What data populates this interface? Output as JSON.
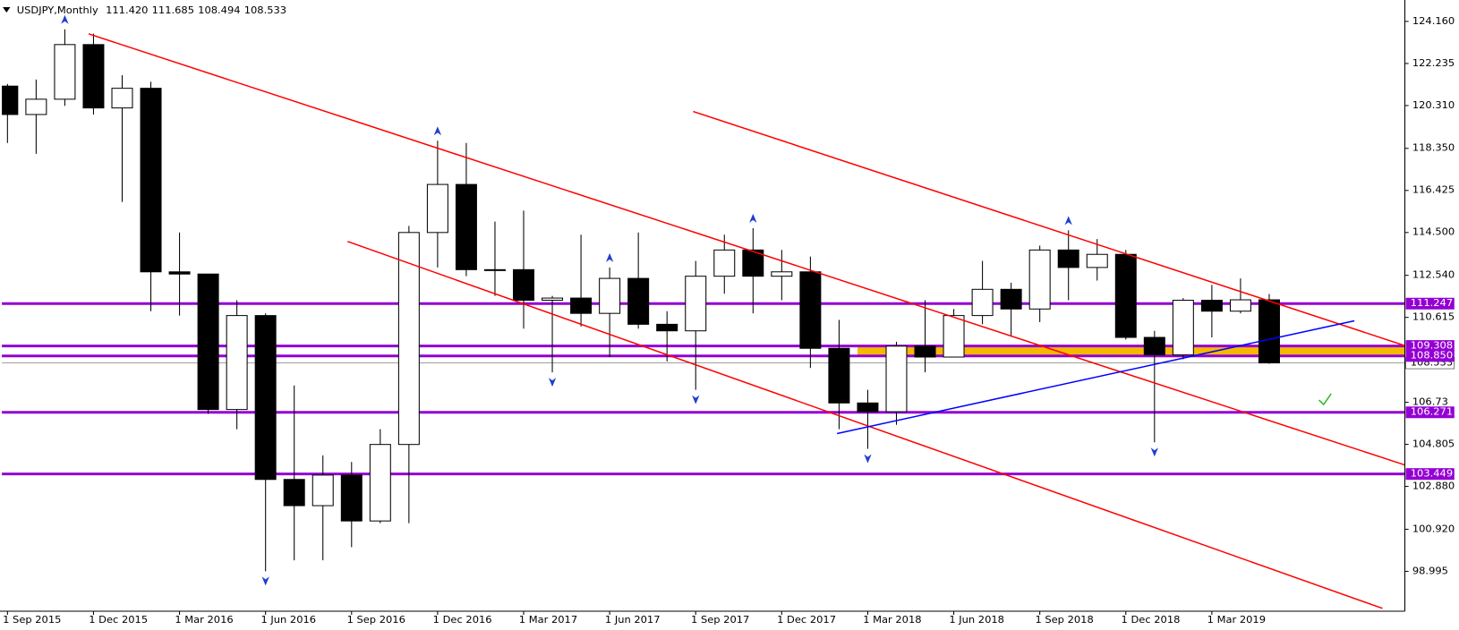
{
  "chart_data": {
    "type": "candlestick",
    "title": "USDJPY,Monthly",
    "header_values": [
      "111.420",
      "111.685",
      "108.494",
      "108.533"
    ],
    "categories": [
      "1 Sep 2015",
      null,
      null,
      "1 Dec 2015",
      null,
      null,
      "1 Mar 2016",
      null,
      null,
      "1 Jun 2016",
      null,
      null,
      "1 Sep 2016",
      null,
      null,
      "1 Dec 2016",
      null,
      null,
      "1 Mar 2017",
      null,
      null,
      "1 Jun 2017",
      null,
      null,
      "1 Sep 2017",
      null,
      null,
      "1 Dec 2017",
      null,
      null,
      "1 Mar 2018",
      null,
      null,
      "1 Jun 2018",
      null,
      null,
      "1 Sep 2018",
      null,
      null,
      "1 Dec 2018",
      null,
      null,
      "1 Mar 2019",
      null,
      null
    ],
    "open": [
      121.2,
      119.9,
      120.6,
      123.1,
      120.2,
      121.1,
      112.7,
      112.6,
      106.4,
      110.7,
      103.2,
      102.0,
      103.4,
      101.3,
      104.8,
      114.5,
      116.7,
      112.8,
      112.8,
      111.4,
      111.5,
      110.8,
      112.4,
      110.3,
      110.0,
      112.5,
      113.7,
      112.5,
      112.7,
      109.2,
      106.7,
      106.3,
      109.3,
      108.8,
      110.7,
      111.9,
      111.0,
      113.7,
      112.9,
      113.5,
      109.7,
      108.9,
      111.4,
      110.9,
      111.42
    ],
    "high": [
      121.3,
      121.5,
      123.8,
      123.6,
      121.7,
      121.4,
      114.5,
      112.6,
      111.4,
      110.8,
      107.5,
      104.3,
      104.0,
      105.5,
      114.8,
      118.7,
      118.6,
      115.0,
      115.5,
      111.6,
      114.4,
      112.9,
      114.5,
      110.9,
      113.2,
      114.4,
      114.7,
      113.7,
      113.4,
      110.5,
      107.3,
      109.5,
      111.4,
      111.0,
      113.2,
      112.2,
      113.9,
      114.6,
      114.2,
      113.7,
      110.0,
      111.5,
      112.1,
      112.4,
      111.685
    ],
    "low": [
      118.6,
      118.1,
      120.3,
      119.9,
      115.9,
      110.9,
      110.7,
      106.2,
      105.5,
      99.0,
      99.5,
      99.5,
      100.1,
      101.2,
      101.2,
      112.9,
      112.5,
      111.6,
      110.1,
      108.1,
      110.2,
      108.8,
      110.1,
      108.6,
      107.3,
      111.7,
      110.8,
      111.4,
      108.3,
      105.5,
      104.6,
      105.7,
      108.1,
      108.8,
      110.3,
      109.8,
      110.4,
      111.4,
      112.3,
      109.6,
      104.9,
      108.7,
      109.7,
      110.8,
      108.494
    ],
    "close": [
      119.9,
      120.6,
      123.1,
      120.2,
      121.1,
      112.7,
      112.6,
      106.4,
      110.7,
      103.2,
      102.0,
      103.4,
      101.3,
      104.8,
      114.5,
      116.7,
      112.8,
      112.8,
      111.4,
      111.5,
      110.8,
      112.4,
      110.3,
      110.0,
      112.5,
      113.7,
      112.5,
      112.7,
      109.2,
      106.7,
      106.3,
      109.3,
      108.8,
      110.7,
      111.9,
      111.0,
      113.7,
      112.9,
      113.5,
      109.7,
      108.9,
      111.4,
      110.9,
      111.42,
      108.533
    ],
    "up_color": "#ffffff",
    "down_color": "#000000",
    "ylim": [
      97.17,
      125.14
    ],
    "yticks": [
      {
        "value": 124.16,
        "label": "124.160"
      },
      122.235,
      {
        "value": 120.31,
        "label": "120.310"
      },
      {
        "value": 118.35,
        "label": "118.350"
      },
      116.425,
      {
        "value": 114.5,
        "label": "114.500"
      },
      {
        "value": 112.54,
        "label": "112.540"
      },
      110.615,
      106.73,
      104.805,
      {
        "value": 102.88,
        "label": "102.880"
      },
      {
        "value": 100.92,
        "label": "100.920"
      },
      98.995
    ],
    "levels": [
      111.247,
      109.308,
      {
        "value": 108.85,
        "label": "108.850"
      },
      106.271,
      103.449
    ],
    "level_color": "#9400d3",
    "zone": {
      "from": 108.85,
      "to": 109.308,
      "start": 30,
      "color": "#f5b800"
    },
    "trendlines": [
      {
        "color": "#ff0000",
        "points": [
          [
            2.83,
            123.59
          ],
          [
            48.76,
            103.85
          ]
        ]
      },
      {
        "color": "#ff0000",
        "points": [
          [
            23.91,
            120.04
          ],
          [
            48.76,
            109.31
          ]
        ]
      },
      {
        "color": "#ff0000",
        "points": [
          [
            11.86,
            114.09
          ],
          [
            47.95,
            97.3
          ]
        ]
      },
      {
        "color": "#0000ff",
        "points": [
          [
            28.93,
            105.3
          ],
          [
            46.97,
            110.46
          ]
        ]
      }
    ],
    "fractals_up": [
      2,
      15,
      21,
      26,
      37
    ],
    "fractals_down": [
      9,
      19,
      24,
      30,
      40
    ]
  }
}
